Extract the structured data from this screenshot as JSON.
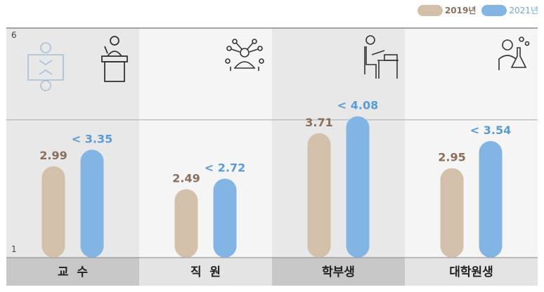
{
  "legend": [
    {
      "label": "2019년",
      "color": "#d2c0aa"
    },
    {
      "label": "2021년",
      "color": "#82b5e3"
    }
  ],
  "chart_data": {
    "type": "bar",
    "categories": [
      "교  수",
      "직  원",
      "학부생",
      "대학원생"
    ],
    "series": [
      {
        "name": "2019년",
        "values": [
          2.99,
          2.49,
          3.71,
          2.95
        ],
        "labels": [
          "2.99",
          "2.49",
          "3.71",
          "2.95"
        ],
        "color": "#d2c0aa",
        "label_color": "#8a6e5a"
      },
      {
        "name": "2021년",
        "values": [
          3.35,
          2.72,
          4.08,
          3.54
        ],
        "labels": [
          "< 3.35",
          "< 2.72",
          "< 4.08",
          "< 3.54"
        ],
        "color": "#82b5e3",
        "label_color": "#5b9bd5"
      }
    ],
    "ylim": [
      1,
      6
    ],
    "yticks": [
      "6",
      "1"
    ],
    "reference_line": 4,
    "icons": [
      "meeting-icon",
      "podium-speaker-icon",
      "network-person-icon",
      "student-desk-icon",
      "scientist-flask-icon"
    ]
  }
}
